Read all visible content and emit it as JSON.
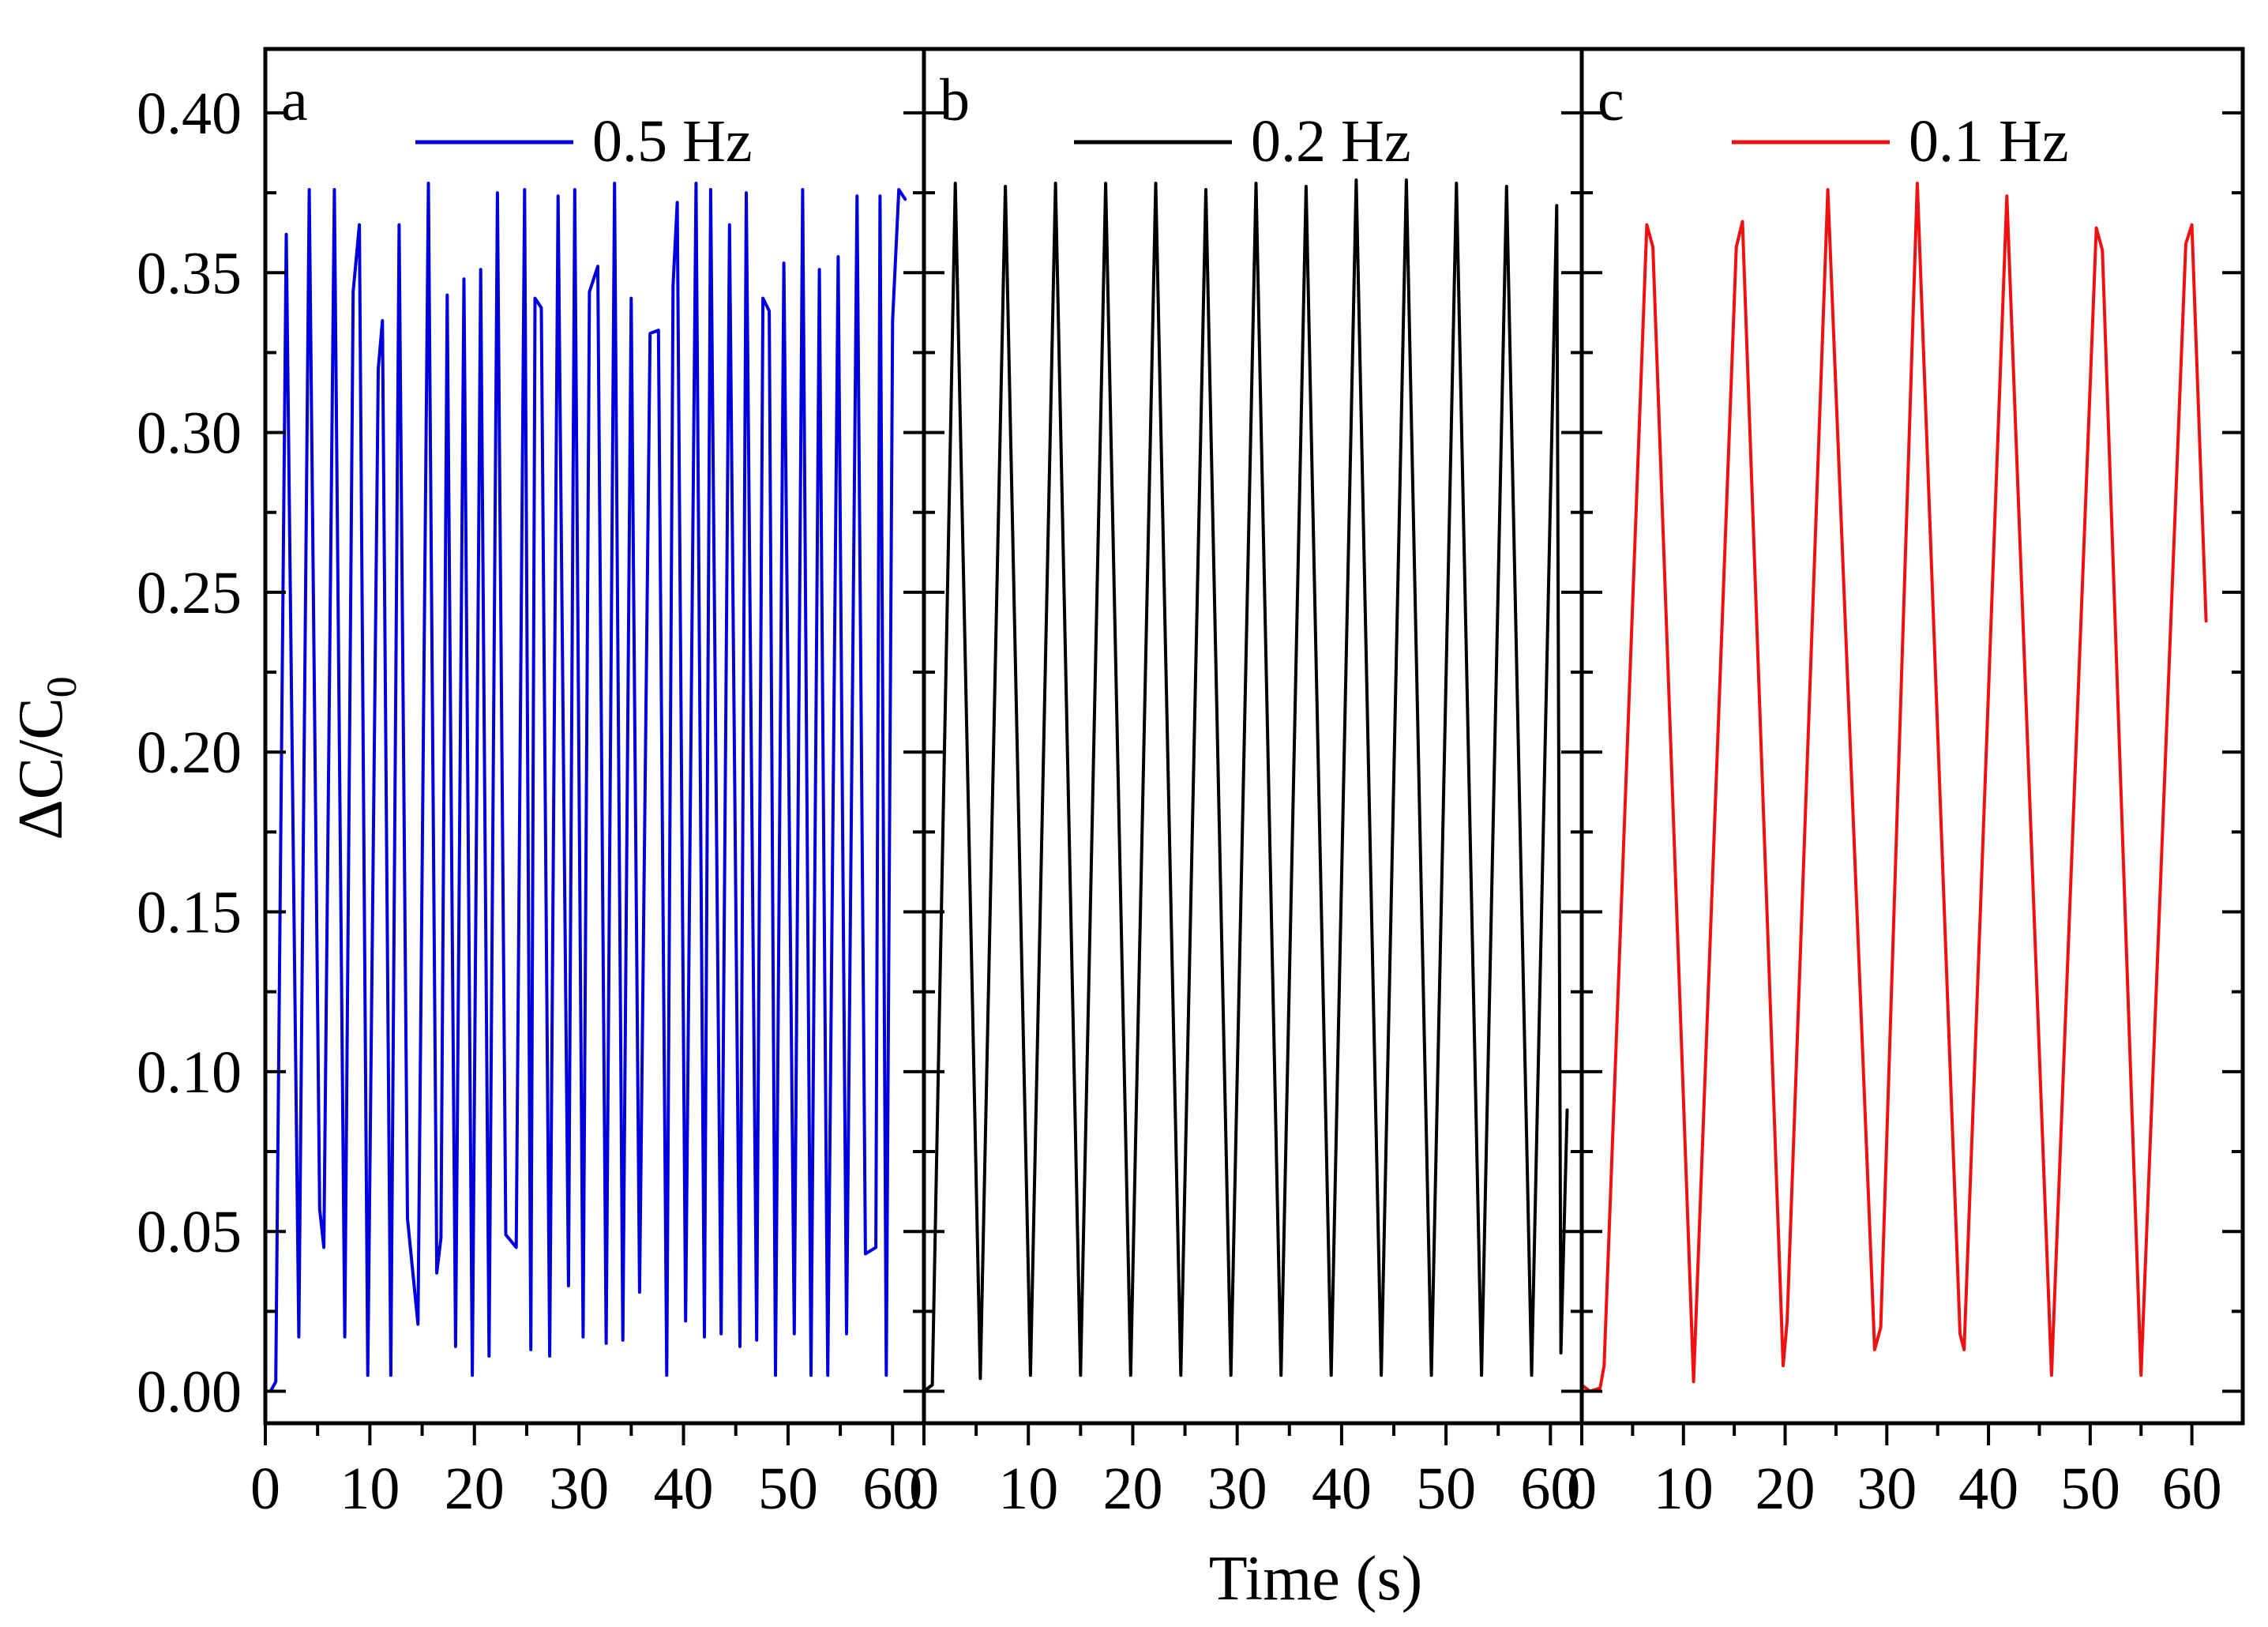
{
  "figure": {
    "ylabel_main": "ΔC/C",
    "ylabel_sub": "0",
    "xlabel": "Time (s)"
  },
  "chart_data": [
    {
      "type": "line",
      "panel_label": "a",
      "xlim": [
        0,
        63
      ],
      "ylim": [
        -0.01,
        0.42
      ],
      "x_ticks": [
        "0",
        "10",
        "20",
        "30",
        "40",
        "50",
        "60"
      ],
      "y_ticks": [
        "0.00",
        "0.05",
        "0.10",
        "0.15",
        "0.20",
        "0.25",
        "0.30",
        "0.35",
        "0.40"
      ],
      "legend_position": "top-right",
      "series": [
        {
          "name": "0.5 Hz",
          "color": "#0000dd",
          "x": [
            0,
            0.5,
            1.0,
            2.0,
            3.2,
            4.2,
            5.2,
            5.6,
            6.6,
            7.6,
            8.4,
            9.0,
            9.8,
            10.8,
            11.2,
            12.0,
            12.8,
            13.6,
            14.6,
            15.6,
            16.4,
            16.8,
            17.4,
            18.2,
            19.0,
            19.8,
            20.6,
            21.4,
            22.2,
            23.0,
            24.0,
            24.8,
            25.4,
            25.8,
            26.4,
            27.2,
            28.0,
            29.0,
            29.6,
            30.4,
            31.0,
            31.8,
            32.6,
            33.4,
            34.2,
            35.0,
            35.8,
            36.8,
            37.6,
            38.4,
            39.0,
            39.4,
            40.2,
            41.2,
            42.0,
            42.6,
            43.6,
            44.4,
            45.4,
            46.0,
            47.0,
            47.6,
            48.2,
            48.8,
            49.6,
            50.6,
            51.4,
            52.2,
            53.0,
            53.8,
            54.8,
            55.6,
            56.6,
            57.4,
            58.4,
            58.8,
            59.4,
            60.0,
            60.6,
            61.2
          ],
          "y": [
            0,
            0,
            0.003,
            0.362,
            0.017,
            0.376,
            0.057,
            0.045,
            0.376,
            0.017,
            0.344,
            0.365,
            0.005,
            0.32,
            0.335,
            0.005,
            0.365,
            0.054,
            0.021,
            0.378,
            0.037,
            0.048,
            0.343,
            0.014,
            0.348,
            0.005,
            0.351,
            0.011,
            0.375,
            0.049,
            0.045,
            0.376,
            0.013,
            0.342,
            0.339,
            0.011,
            0.374,
            0.033,
            0.376,
            0.017,
            0.344,
            0.352,
            0.015,
            0.378,
            0.016,
            0.342,
            0.031,
            0.331,
            0.332,
            0.005,
            0.346,
            0.372,
            0.022,
            0.378,
            0.017,
            0.376,
            0.018,
            0.365,
            0.014,
            0.375,
            0.016,
            0.342,
            0.338,
            0.005,
            0.353,
            0.018,
            0.376,
            0.005,
            0.351,
            0.005,
            0.355,
            0.018,
            0.374,
            0.043,
            0.045,
            0.374,
            0.005,
            0.335,
            0.376,
            0.373
          ]
        }
      ]
    },
    {
      "type": "line",
      "panel_label": "b",
      "xlim": [
        0,
        63
      ],
      "ylim": [
        -0.01,
        0.42
      ],
      "x_ticks": [
        "0",
        "10",
        "20",
        "30",
        "40",
        "50",
        "60"
      ],
      "y_ticks": [
        "0.00",
        "0.05",
        "0.10",
        "0.15",
        "0.20",
        "0.25",
        "0.30",
        "0.35",
        "0.40"
      ],
      "legend_position": "top-right",
      "series": [
        {
          "name": "0.2 Hz",
          "color": "#000000",
          "x": [
            0,
            0.8,
            3.0,
            5.4,
            7.8,
            10.2,
            12.6,
            15.0,
            17.4,
            19.8,
            22.2,
            24.6,
            27.0,
            29.4,
            31.8,
            34.2,
            36.6,
            39.0,
            41.4,
            43.8,
            46.2,
            48.6,
            51.0,
            53.4,
            55.8,
            58.2,
            60.6,
            61.0,
            61.6
          ],
          "y": [
            0,
            0.002,
            0.378,
            0.004,
            0.377,
            0.005,
            0.378,
            0.005,
            0.378,
            0.005,
            0.378,
            0.005,
            0.376,
            0.005,
            0.378,
            0.005,
            0.377,
            0.005,
            0.379,
            0.005,
            0.379,
            0.005,
            0.378,
            0.005,
            0.377,
            0.005,
            0.371,
            0.012,
            0.088
          ]
        }
      ]
    },
    {
      "type": "line",
      "panel_label": "c",
      "xlim": [
        0,
        65
      ],
      "ylim": [
        -0.01,
        0.42
      ],
      "x_ticks": [
        "0",
        "10",
        "20",
        "30",
        "40",
        "50",
        "60"
      ],
      "y_ticks": [
        "0.00",
        "0.05",
        "0.10",
        "0.15",
        "0.20",
        "0.25",
        "0.30",
        "0.35",
        "0.40"
      ],
      "legend_position": "top-right",
      "series": [
        {
          "name": "0.1 Hz",
          "color": "#ee1111",
          "x": [
            0,
            0.8,
            1.8,
            2.2,
            6.4,
            7.0,
            11.0,
            15.2,
            15.8,
            19.8,
            20.2,
            24.2,
            28.8,
            29.4,
            33.0,
            37.2,
            37.6,
            41.8,
            46.2,
            50.6,
            51.2,
            55.0,
            59.4,
            60.0,
            61.4
          ],
          "y": [
            0.002,
            0,
            0.001,
            0.008,
            0.365,
            0.358,
            0.003,
            0.358,
            0.366,
            0.008,
            0.022,
            0.376,
            0.013,
            0.02,
            0.378,
            0.018,
            0.013,
            0.374,
            0.005,
            0.364,
            0.357,
            0.005,
            0.359,
            0.365,
            0.241
          ]
        }
      ]
    }
  ]
}
